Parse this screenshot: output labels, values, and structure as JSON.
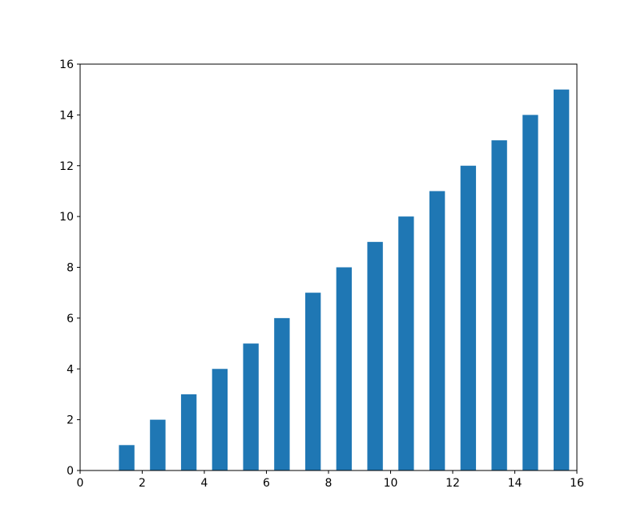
{
  "chart_data": {
    "type": "bar",
    "x": [
      1.5,
      2.5,
      3.5,
      4.5,
      5.5,
      6.5,
      7.5,
      8.5,
      9.5,
      10.5,
      11.5,
      12.5,
      13.5,
      14.5,
      15.5
    ],
    "values": [
      1,
      2,
      3,
      4,
      5,
      6,
      7,
      8,
      9,
      10,
      11,
      12,
      13,
      14,
      15
    ],
    "color": "#1f77b4",
    "xlim": [
      0,
      16
    ],
    "xticks": [
      0,
      2,
      4,
      6,
      8,
      10,
      12,
      14,
      16
    ],
    "ylim": [
      0,
      16
    ],
    "yticks": [
      0,
      2,
      4,
      6,
      8,
      10,
      12,
      14,
      16
    ],
    "grid": false
  }
}
